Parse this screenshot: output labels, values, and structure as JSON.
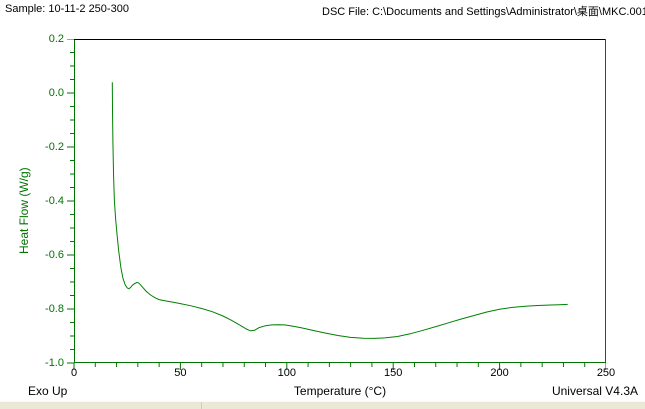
{
  "header": {
    "sample_label": "Sample: 10-11-2 250-300",
    "file_label": "DSC File: C:\\Documents and Settings\\Administrator\\桌面\\MKC.001"
  },
  "footer": {
    "exo_up": "Exo Up",
    "version": "Universal V4.3A"
  },
  "chart_data": {
    "type": "line",
    "title": "",
    "xlabel": "Temperature (°C)",
    "ylabel": "Heat Flow (W/g)",
    "xlim": [
      0,
      250
    ],
    "ylim": [
      -1.0,
      0.2
    ],
    "x_ticks": [
      0,
      50,
      100,
      150,
      200,
      250
    ],
    "x_minor_step": 10,
    "y_tick_labels": [
      "0.2",
      "0.0",
      "-0.2",
      "-0.4",
      "-0.6",
      "-0.8",
      "-1.0"
    ],
    "y_minor_step": 0.05,
    "grid": false,
    "legend": "none",
    "axis_color": "#007300",
    "curve_color": "#008000",
    "frame_top_color": "#000000",
    "x_tick_label_color": "#000000",
    "y_tick_label_color": "#007300",
    "series": [
      {
        "name": "10-11-2 250-300",
        "points": [
          [
            18,
            0.04
          ],
          [
            18.1,
            -0.06
          ],
          [
            18.3,
            -0.18
          ],
          [
            18.6,
            -0.31
          ],
          [
            19,
            -0.4
          ],
          [
            19.6,
            -0.47
          ],
          [
            20.3,
            -0.53
          ],
          [
            21,
            -0.585
          ],
          [
            22,
            -0.645
          ],
          [
            23,
            -0.685
          ],
          [
            24,
            -0.71
          ],
          [
            25,
            -0.722
          ],
          [
            25.8,
            -0.725
          ],
          [
            26.6,
            -0.72
          ],
          [
            27.5,
            -0.712
          ],
          [
            28.5,
            -0.706
          ],
          [
            29.5,
            -0.702
          ],
          [
            30.3,
            -0.703
          ],
          [
            31.2,
            -0.71
          ],
          [
            32.5,
            -0.722
          ],
          [
            34,
            -0.735
          ],
          [
            36,
            -0.748
          ],
          [
            38,
            -0.758
          ],
          [
            40,
            -0.765
          ],
          [
            43,
            -0.77
          ],
          [
            46,
            -0.774
          ],
          [
            50,
            -0.78
          ],
          [
            55,
            -0.788
          ],
          [
            60,
            -0.798
          ],
          [
            65,
            -0.81
          ],
          [
            70,
            -0.826
          ],
          [
            74,
            -0.842
          ],
          [
            78,
            -0.86
          ],
          [
            81,
            -0.874
          ],
          [
            83,
            -0.881
          ],
          [
            85,
            -0.878
          ],
          [
            87,
            -0.869
          ],
          [
            90,
            -0.862
          ],
          [
            93,
            -0.859
          ],
          [
            96,
            -0.858
          ],
          [
            99,
            -0.859
          ],
          [
            103,
            -0.864
          ],
          [
            107,
            -0.87
          ],
          [
            112,
            -0.879
          ],
          [
            118,
            -0.889
          ],
          [
            124,
            -0.898
          ],
          [
            130,
            -0.905
          ],
          [
            136,
            -0.908
          ],
          [
            141,
            -0.909
          ],
          [
            146,
            -0.907
          ],
          [
            152,
            -0.902
          ],
          [
            158,
            -0.892
          ],
          [
            164,
            -0.879
          ],
          [
            170,
            -0.865
          ],
          [
            176,
            -0.851
          ],
          [
            182,
            -0.837
          ],
          [
            188,
            -0.824
          ],
          [
            194,
            -0.811
          ],
          [
            200,
            -0.801
          ],
          [
            206,
            -0.794
          ],
          [
            212,
            -0.79
          ],
          [
            218,
            -0.787
          ],
          [
            224,
            -0.785
          ],
          [
            228,
            -0.784
          ],
          [
            232,
            -0.783
          ]
        ]
      }
    ]
  }
}
